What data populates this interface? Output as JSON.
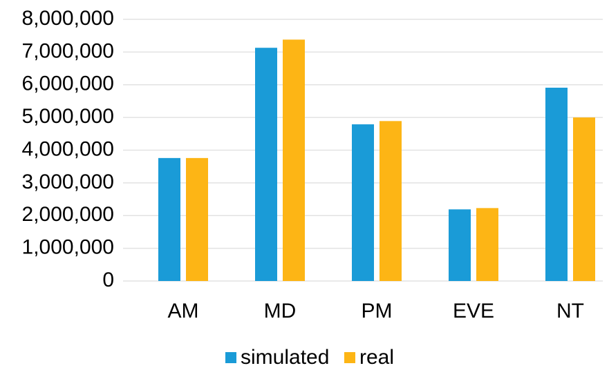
{
  "chart_data": {
    "type": "bar",
    "categories": [
      "AM",
      "MD",
      "PM",
      "EVE",
      "NT"
    ],
    "series": [
      {
        "name": "simulated",
        "color": "#1a9bd7",
        "values": [
          3760000,
          7130000,
          4790000,
          2190000,
          5910000
        ]
      },
      {
        "name": "real",
        "color": "#fdb515",
        "values": [
          3760000,
          7380000,
          4890000,
          2230000,
          5000000
        ]
      }
    ],
    "ylim": [
      0,
      8000000
    ],
    "yticks": [
      0,
      {
        "value": 1000000,
        "label": "1,000,000"
      },
      {
        "value": 2000000,
        "label": "2,000,000"
      },
      {
        "value": 3000000,
        "label": "3,000,000"
      },
      {
        "value": 4000000,
        "label": "4,000,000"
      },
      {
        "value": 5000000,
        "label": "5,000,000"
      },
      {
        "value": 6000000,
        "label": "6,000,000"
      },
      {
        "value": 7000000,
        "label": "7,000,000"
      },
      {
        "value": 8000000,
        "label": "8,000,000"
      }
    ],
    "grid": true,
    "legend": "bottom"
  }
}
